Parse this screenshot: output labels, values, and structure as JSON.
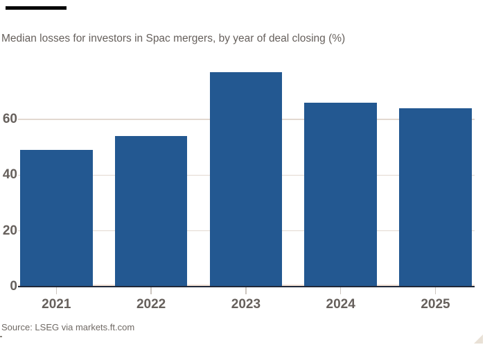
{
  "chart_data": {
    "type": "bar",
    "title": "Median losses for investors in Spac mergers, by year of deal closing (%)",
    "categories": [
      "2021",
      "2022",
      "2023",
      "2024",
      "2025"
    ],
    "values": [
      49,
      54,
      77,
      66,
      64
    ],
    "xlabel": "",
    "ylabel": "",
    "yticks": [
      0,
      20,
      40,
      60
    ],
    "ylim": [
      0,
      80
    ],
    "grid": "horizontal",
    "legend": "none",
    "source": "Source: LSEG via markets.ft.com"
  },
  "colors": {
    "bar": "#235891",
    "text": "#66605C",
    "gridline": "#E2D8D0",
    "zero_gridline": "#F2E2D7",
    "baseline": "#20293A",
    "tick": "#CCC5BF",
    "top_rule": "#000000",
    "background": "#FFFFFF",
    "resize_handle": "#E9E1D6"
  }
}
